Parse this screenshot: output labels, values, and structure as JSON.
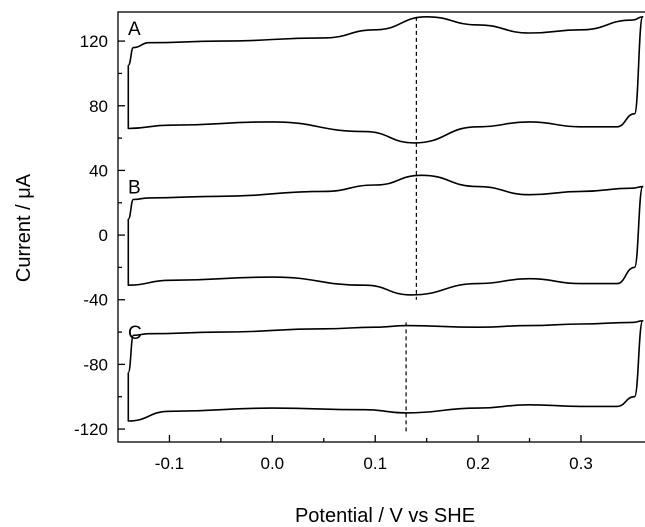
{
  "chart_data": {
    "type": "line",
    "title": "",
    "xlabel": "Potential / V vs SHE",
    "ylabel": "Current / μA",
    "xlim": [
      -0.15,
      0.37
    ],
    "ylim": [
      -128,
      138
    ],
    "x_ticks": [
      -0.1,
      0.0,
      0.1,
      0.2,
      0.3
    ],
    "x_tick_labels": [
      "-0.1",
      "0.0",
      "0.1",
      "0.2",
      "0.3"
    ],
    "y_ticks": [
      120,
      80,
      40,
      0,
      -40,
      -80,
      -120
    ],
    "y_tick_labels": [
      "120",
      "80",
      "40",
      "0",
      "-40",
      "-80",
      "-120"
    ],
    "grid": false,
    "series": [
      {
        "name": "A",
        "anodic": [
          [
            -0.14,
            105
          ],
          [
            -0.135,
            116
          ],
          [
            -0.12,
            119
          ],
          [
            -0.05,
            120
          ],
          [
            0.05,
            122
          ],
          [
            0.1,
            127
          ],
          [
            0.15,
            135
          ],
          [
            0.2,
            130
          ],
          [
            0.25,
            125
          ],
          [
            0.3,
            127
          ],
          [
            0.35,
            133
          ],
          [
            0.36,
            135
          ]
        ],
        "cathodic": [
          [
            0.36,
            135
          ],
          [
            0.352,
            75
          ],
          [
            0.335,
            67
          ],
          [
            0.3,
            67
          ],
          [
            0.25,
            70
          ],
          [
            0.2,
            67
          ],
          [
            0.138,
            57
          ],
          [
            0.09,
            64
          ],
          [
            0.0,
            70
          ],
          [
            -0.1,
            68
          ],
          [
            -0.14,
            66
          ],
          [
            -0.14,
            105
          ]
        ]
      },
      {
        "name": "B",
        "anodic": [
          [
            -0.14,
            10
          ],
          [
            -0.135,
            22
          ],
          [
            -0.12,
            23
          ],
          [
            -0.05,
            24
          ],
          [
            0.05,
            27
          ],
          [
            0.1,
            31
          ],
          [
            0.145,
            37
          ],
          [
            0.2,
            30
          ],
          [
            0.25,
            25
          ],
          [
            0.3,
            27
          ],
          [
            0.35,
            29
          ],
          [
            0.36,
            30
          ]
        ],
        "cathodic": [
          [
            0.36,
            30
          ],
          [
            0.352,
            -20
          ],
          [
            0.335,
            -30
          ],
          [
            0.3,
            -30
          ],
          [
            0.25,
            -27
          ],
          [
            0.2,
            -30
          ],
          [
            0.135,
            -37
          ],
          [
            0.09,
            -31
          ],
          [
            0.0,
            -26
          ],
          [
            -0.1,
            -28
          ],
          [
            -0.14,
            -31
          ],
          [
            -0.14,
            10
          ]
        ]
      },
      {
        "name": "C",
        "anodic": [
          [
            -0.14,
            -85
          ],
          [
            -0.135,
            -62
          ],
          [
            -0.12,
            -61
          ],
          [
            -0.05,
            -60
          ],
          [
            0.05,
            -58
          ],
          [
            0.1,
            -57
          ],
          [
            0.13,
            -56
          ],
          [
            0.2,
            -57
          ],
          [
            0.25,
            -56
          ],
          [
            0.3,
            -55
          ],
          [
            0.35,
            -54
          ],
          [
            0.36,
            -53
          ]
        ],
        "cathodic": [
          [
            0.36,
            -53
          ],
          [
            0.352,
            -100
          ],
          [
            0.335,
            -106
          ],
          [
            0.3,
            -106
          ],
          [
            0.25,
            -105
          ],
          [
            0.2,
            -107
          ],
          [
            0.13,
            -110
          ],
          [
            0.09,
            -108
          ],
          [
            0.0,
            -107
          ],
          [
            -0.1,
            -109
          ],
          [
            -0.14,
            -115
          ],
          [
            -0.14,
            -85
          ]
        ]
      }
    ],
    "reference_lines": [
      {
        "x": 0.14,
        "y_from": -40,
        "y_to": 135
      },
      {
        "x": 0.13,
        "y_from": -122,
        "y_to": -54
      }
    ]
  }
}
